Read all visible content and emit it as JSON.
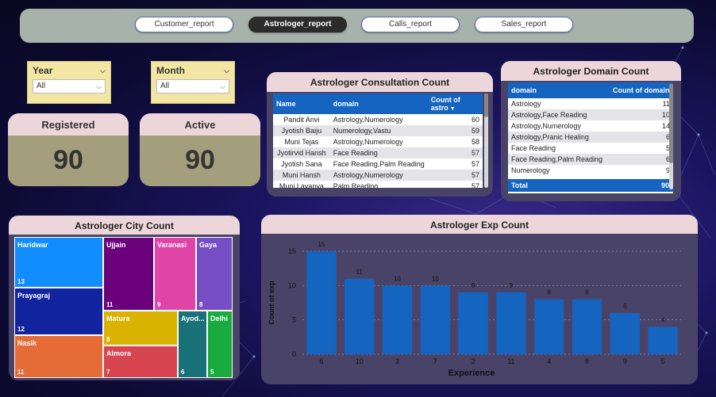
{
  "nav": {
    "items": [
      {
        "label": "Customer_report",
        "active": false
      },
      {
        "label": "Astrologer_report",
        "active": true
      },
      {
        "label": "Calls_report",
        "active": false
      },
      {
        "label": "Sales_report",
        "active": false
      }
    ]
  },
  "filters": {
    "year": {
      "title": "Year",
      "value": "All"
    },
    "month": {
      "title": "Month",
      "value": "All"
    }
  },
  "kpis": {
    "registered": {
      "label": "Registered",
      "value": "90"
    },
    "active": {
      "label": "Active",
      "value": "90"
    }
  },
  "consultation": {
    "title": "Astrologer Consultation Count",
    "columns": [
      "Name",
      "domain",
      "Count of astro"
    ],
    "rows": [
      [
        "Pandit Anvi",
        "Astrology,Numerology",
        "60"
      ],
      [
        "Jyotish Baiju",
        "Numerology,Vastu",
        "59"
      ],
      [
        "Muni Tejas",
        "Astrology,Numerology",
        "58"
      ],
      [
        "Jyotirvid Hansh",
        "Face Reading",
        "57"
      ],
      [
        "Jyotish Sana",
        "Face Reading,Palm Reading",
        "57"
      ],
      [
        "Muni Hansh",
        "Astrology,Numerology",
        "57"
      ],
      [
        "Muni Lavanya",
        "Palm Reading",
        "57"
      ]
    ]
  },
  "domain": {
    "title": "Astrologer Domain Count",
    "columns": [
      "domain",
      "Count of domain"
    ],
    "rows": [
      [
        "Astrology",
        "11"
      ],
      [
        "Astrology,Face Reading",
        "10"
      ],
      [
        "Astrology,Numerology",
        "14"
      ],
      [
        "Astrology,Pranic Healing",
        "6"
      ],
      [
        "Face Reading",
        "5"
      ],
      [
        "Face Reading,Palm Reading",
        "6"
      ],
      [
        "Numerology",
        "9"
      ]
    ],
    "total_label": "Total",
    "total_value": "90"
  },
  "city": {
    "title": "Astrologer City Count",
    "cells": [
      {
        "name": "Haridwar",
        "value": "13",
        "color": "#118dff"
      },
      {
        "name": "Prayagraj",
        "value": "12",
        "color": "#12239e"
      },
      {
        "name": "Nasik",
        "value": "11",
        "color": "#e66c37"
      },
      {
        "name": "Ujjain",
        "value": "11",
        "color": "#6b007b"
      },
      {
        "name": "Varanasi",
        "value": "9",
        "color": "#e044a7"
      },
      {
        "name": "Gaya",
        "value": "8",
        "color": "#744ec2"
      },
      {
        "name": "Matura",
        "value": "8",
        "color": "#d9b300"
      },
      {
        "name": "Almora",
        "value": "7",
        "color": "#d64550"
      },
      {
        "name": "Ayod...",
        "value": "6",
        "color": "#197278"
      },
      {
        "name": "Delhi",
        "value": "5",
        "color": "#1aab40"
      }
    ]
  },
  "chart_data": {
    "type": "bar",
    "title": "Astrologer Exp Count",
    "xlabel": "Experience",
    "ylabel": "Count of exp",
    "categories": [
      "6",
      "10",
      "3",
      "7",
      "2",
      "11",
      "4",
      "8",
      "9",
      "5"
    ],
    "values": [
      15,
      11,
      10,
      10,
      9,
      9,
      8,
      8,
      6,
      4
    ],
    "ylim": [
      0,
      15
    ],
    "yticks": [
      "0",
      "5",
      "10",
      "15"
    ],
    "bar_color": "#1565c0",
    "grid": true
  }
}
